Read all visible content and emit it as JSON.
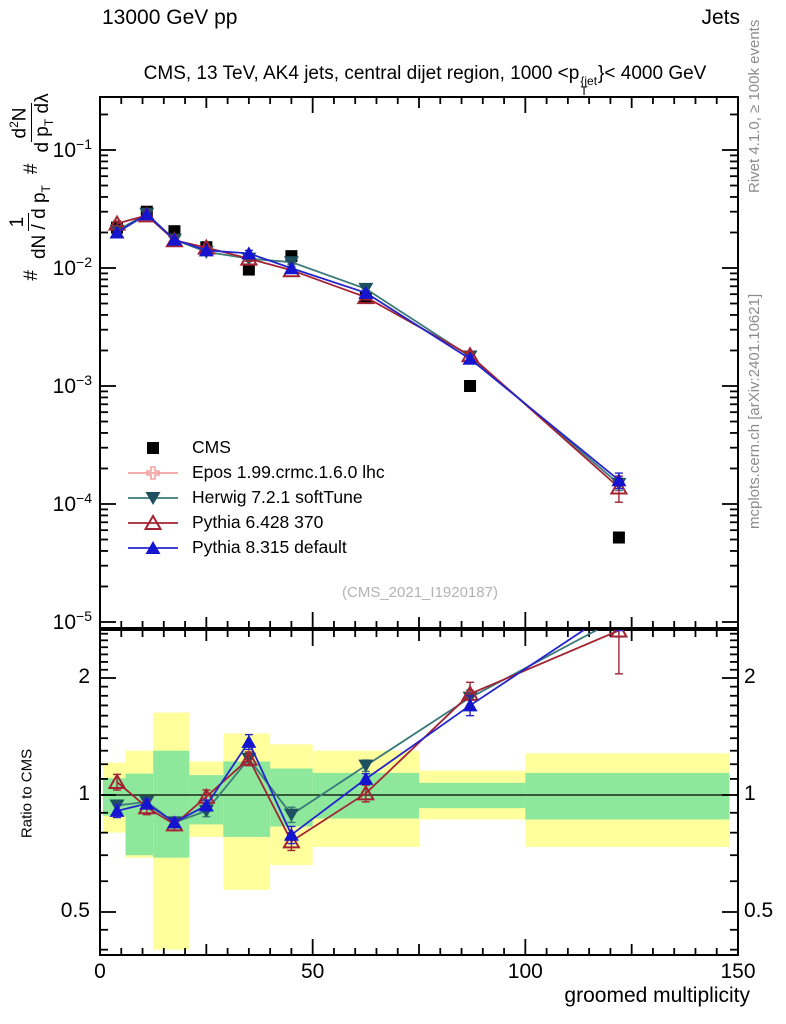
{
  "header": {
    "beam_label": "13000 GeV pp",
    "group_label": "Jets"
  },
  "title": {
    "pre": "CMS, 13 TeV, AK4 jets, central dijet region, 1000 <p",
    "sup": "{jet",
    "sub": "T",
    "post": "}< 4000 GeV"
  },
  "side_notes": {
    "rivet": "Rivet 4.1.0, ≥ 100k events",
    "mcplots": "mcplots.cern.ch [arXiv:2401.10621]"
  },
  "watermark": "(CMS_2021_I1920187)",
  "y_axis_label": {
    "hash1": "#",
    "f1_num": "1",
    "f1_den": "dN / d p",
    "f1_den_sub": "T",
    "hash2": "#",
    "f2_num_pre": "d",
    "f2_num_sup": "2",
    "f2_num_post": "N",
    "f2_den": "d p",
    "f2_den_sub": "T",
    "f2_den_post": " dλ"
  },
  "ratio_axis_label": "Ratio to CMS",
  "x_axis_label": "groomed multiplicity",
  "colors": {
    "cms": "#000000",
    "epos": "#f2a2a2",
    "herwig_line": "#3b7a7a",
    "herwig_marker": "#1e5060",
    "pythia6": "#a32333",
    "pythia8_line": "#2424cc",
    "pythia8_marker": "#1515cf",
    "band_yellow": "#ffff9c",
    "band_green": "#8ee89c",
    "frame": "#000000",
    "side_text": "#8c8c8c",
    "watermark": "#b3b3b3"
  },
  "legend": {
    "entries": [
      {
        "label": "CMS",
        "marker": "square",
        "color": "#000000",
        "line": false
      },
      {
        "label": "Epos 1.99.crmc.1.6.0 lhc",
        "marker": "cross-open",
        "color": "#f2a2a2",
        "line": true
      },
      {
        "label": "Herwig 7.2.1 softTune",
        "marker": "triangle-down",
        "color": "#3b7a7a",
        "marker_color": "#1e5060",
        "line": true
      },
      {
        "label": "Pythia 6.428 370",
        "marker": "triangle-up-open",
        "color": "#a32333",
        "line": true
      },
      {
        "label": "Pythia 8.315 default",
        "marker": "triangle-up",
        "color": "#2424cc",
        "marker_color": "#1515cf",
        "line": true
      }
    ]
  },
  "chart_data": {
    "type": "line",
    "title": "CMS, 13 TeV, AK4 jets, central dijet region, 1000 < pT(jet) < 4000 GeV",
    "xlabel": "groomed multiplicity",
    "x_axis": {
      "min": 0,
      "max": 150,
      "major_tick_labels": [
        "0",
        "50",
        "100",
        "150"
      ],
      "major_tick_values": [
        0,
        50,
        100,
        150
      ],
      "minor_step": 5
    },
    "bin_centers": [
      4,
      11,
      17.5,
      25,
      35,
      45,
      62.5,
      87,
      122
    ],
    "top_panel": {
      "y_scale": "log",
      "ylim": [
        1e-05,
        0.28
      ],
      "decade_base": "10",
      "decade_exponents": [
        "−1",
        "−2",
        "−3",
        "−4",
        "−5"
      ],
      "decade_values": [
        0.1,
        0.01,
        0.001,
        0.0001,
        1e-05
      ],
      "series": [
        {
          "name": "CMS",
          "marker": "square",
          "color": "#000000",
          "line": false,
          "values": [
            0.022,
            0.03,
            0.0205,
            0.015,
            0.0097,
            0.0126,
            0.0056,
            0.001,
            5.2e-05
          ]
        },
        {
          "name": "Epos 1.99.crmc.1.6.0 lhc",
          "marker": "cross-open",
          "color": "#f2a2a2",
          "line": true,
          "values": []
        },
        {
          "name": "Herwig 7.2.1 softTune",
          "marker": "triangle-down",
          "color": "#3b7a7a",
          "marker_color": "#1e5060",
          "line": true,
          "values": [
            0.0207,
            0.0288,
            0.0174,
            0.0137,
            0.012,
            0.0112,
            0.00666,
            0.00178,
            0.000148
          ],
          "rel_err": [
            0.03,
            0.02,
            0.02,
            0.03,
            0.05,
            0.04,
            0.04,
            0.06,
            0.12
          ]
        },
        {
          "name": "Pythia 6.428 370",
          "marker": "triangle-up-open",
          "color": "#a32333",
          "line": true,
          "values": [
            0.0238,
            0.0279,
            0.0172,
            0.0149,
            0.012,
            0.00958,
            0.00566,
            0.00182,
            0.000138
          ],
          "rel_err": [
            0.05,
            0.03,
            0.02,
            0.03,
            0.05,
            0.05,
            0.05,
            0.08,
            0.25
          ]
        },
        {
          "name": "Pythia 8.315 default",
          "marker": "triangle-up",
          "color": "#2424cc",
          "marker_color": "#1515cf",
          "line": true,
          "values": [
            0.02,
            0.0285,
            0.0174,
            0.0141,
            0.0133,
            0.00995,
            0.00616,
            0.0017,
            0.000159
          ],
          "rel_err": [
            0.04,
            0.02,
            0.02,
            0.03,
            0.06,
            0.04,
            0.04,
            0.07,
            0.15
          ]
        }
      ]
    },
    "ratio_panel": {
      "y_scale": "log",
      "ylim": [
        0.387,
        2.66
      ],
      "tick_labels": [
        "2",
        "1",
        "0.5"
      ],
      "tick_values": [
        2,
        1,
        0.5
      ],
      "reference_line": 1,
      "bands": [
        {
          "xlo": 0.7,
          "xhi": 6,
          "yellow": [
            0.8,
            1.21
          ],
          "green": [
            0.885,
            1.105
          ]
        },
        {
          "xlo": 6,
          "xhi": 12.5,
          "yellow": [
            0.69,
            1.3
          ],
          "green": [
            0.7,
            1.135
          ]
        },
        {
          "xlo": 12.5,
          "xhi": 21,
          "yellow": [
            0.4,
            1.63
          ],
          "green": [
            0.69,
            1.3
          ]
        },
        {
          "xlo": 21,
          "xhi": 29,
          "yellow": [
            0.78,
            1.22
          ],
          "green": [
            0.84,
            1.125
          ]
        },
        {
          "xlo": 29,
          "xhi": 40,
          "yellow": [
            0.57,
            1.44
          ],
          "green": [
            0.78,
            1.22
          ]
        },
        {
          "xlo": 40,
          "xhi": 50,
          "yellow": [
            0.66,
            1.35
          ],
          "green": [
            0.83,
            1.17
          ]
        },
        {
          "xlo": 50,
          "xhi": 75,
          "yellow": [
            0.735,
            1.3
          ],
          "green": [
            0.87,
            1.14
          ]
        },
        {
          "xlo": 75,
          "xhi": 100,
          "yellow": [
            0.865,
            1.155
          ],
          "green": [
            0.925,
            1.075
          ]
        },
        {
          "xlo": 100,
          "xhi": 148,
          "yellow": [
            0.735,
            1.28
          ],
          "green": [
            0.865,
            1.14
          ]
        }
      ],
      "series": [
        {
          "name": "Herwig 7.2.1 softTune",
          "marker": "triangle-down",
          "color": "#3b7a7a",
          "marker_color": "#1e5060",
          "ratios": [
            0.94,
            0.96,
            0.85,
            0.91,
            1.24,
            0.89,
            1.19,
            1.78,
            2.85
          ],
          "errs": [
            0.03,
            0.02,
            0.02,
            0.03,
            0.05,
            0.04,
            0.04,
            0.08,
            0.3
          ]
        },
        {
          "name": "Pythia 6.428 370",
          "marker": "triangle-up-open",
          "color": "#a32333",
          "ratios": [
            1.08,
            0.93,
            0.84,
            0.99,
            1.24,
            0.76,
            1.01,
            1.82,
            2.65
          ],
          "errs": [
            0.05,
            0.04,
            0.03,
            0.04,
            0.05,
            0.04,
            0.05,
            0.13,
            0.6
          ]
        },
        {
          "name": "Pythia 8.315 default",
          "marker": "triangle-up",
          "color": "#2424cc",
          "marker_color": "#1515cf",
          "ratios": [
            0.91,
            0.95,
            0.85,
            0.94,
            1.37,
            0.79,
            1.1,
            1.7,
            3.05
          ],
          "errs": [
            0.035,
            0.025,
            0.02,
            0.03,
            0.06,
            0.04,
            0.035,
            0.1,
            0.4
          ]
        }
      ]
    }
  }
}
